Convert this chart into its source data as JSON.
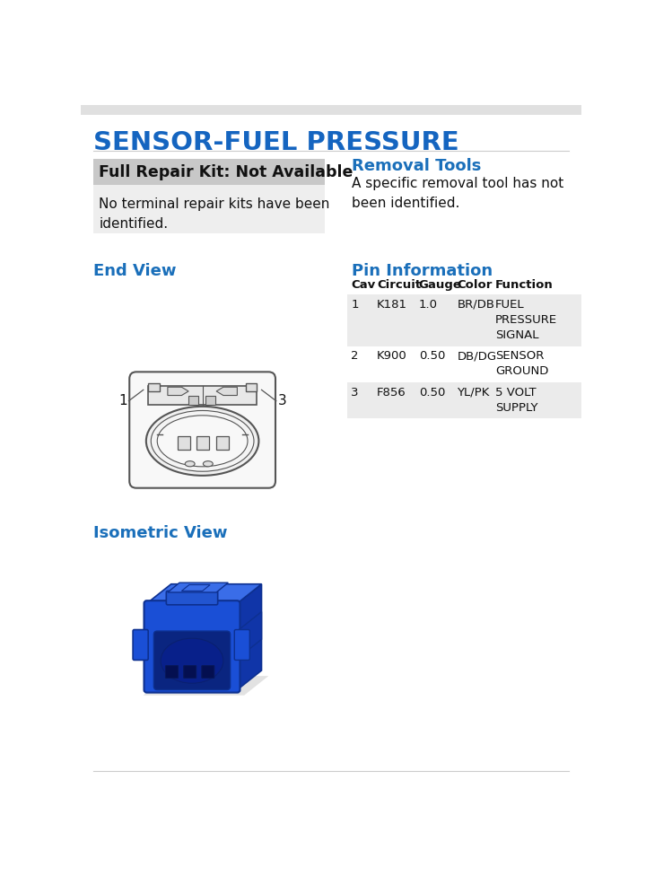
{
  "title": "SENSOR-FUEL PRESSURE",
  "title_color": "#1565C0",
  "white": "#ffffff",
  "repair_kit_header": "Full Repair Kit: Not Available",
  "repair_kit_header_bg": "#c8c8c8",
  "repair_kit_body": "No terminal repair kits have been\nidentified.",
  "removal_tools_title": "Removal Tools",
  "removal_tools_text": "A specific removal tool has not\nbeen identified.",
  "pin_info_title": "Pin Information",
  "end_view_title": "End View",
  "isometric_view_title": "Isometric View",
  "table_headers": [
    "Cav",
    "Circuit",
    "Gauge",
    "Color",
    "Function"
  ],
  "table_rows": [
    [
      "1",
      "K181",
      "1.0",
      "BR/DB",
      "FUEL\nPRESSURE\nSIGNAL"
    ],
    [
      "2",
      "K900",
      "0.50",
      "DB/DG",
      "SENSOR\nGROUND"
    ],
    [
      "3",
      "F856",
      "0.50",
      "YL/PK",
      "5 VOLT\nSUPPLY"
    ]
  ],
  "table_row_colors": [
    "#ebebeb",
    "#ffffff",
    "#ebebeb"
  ],
  "blue_color": "#1a6fba",
  "top_bar_color": "#e0e0e0",
  "line_color": "#cccccc"
}
